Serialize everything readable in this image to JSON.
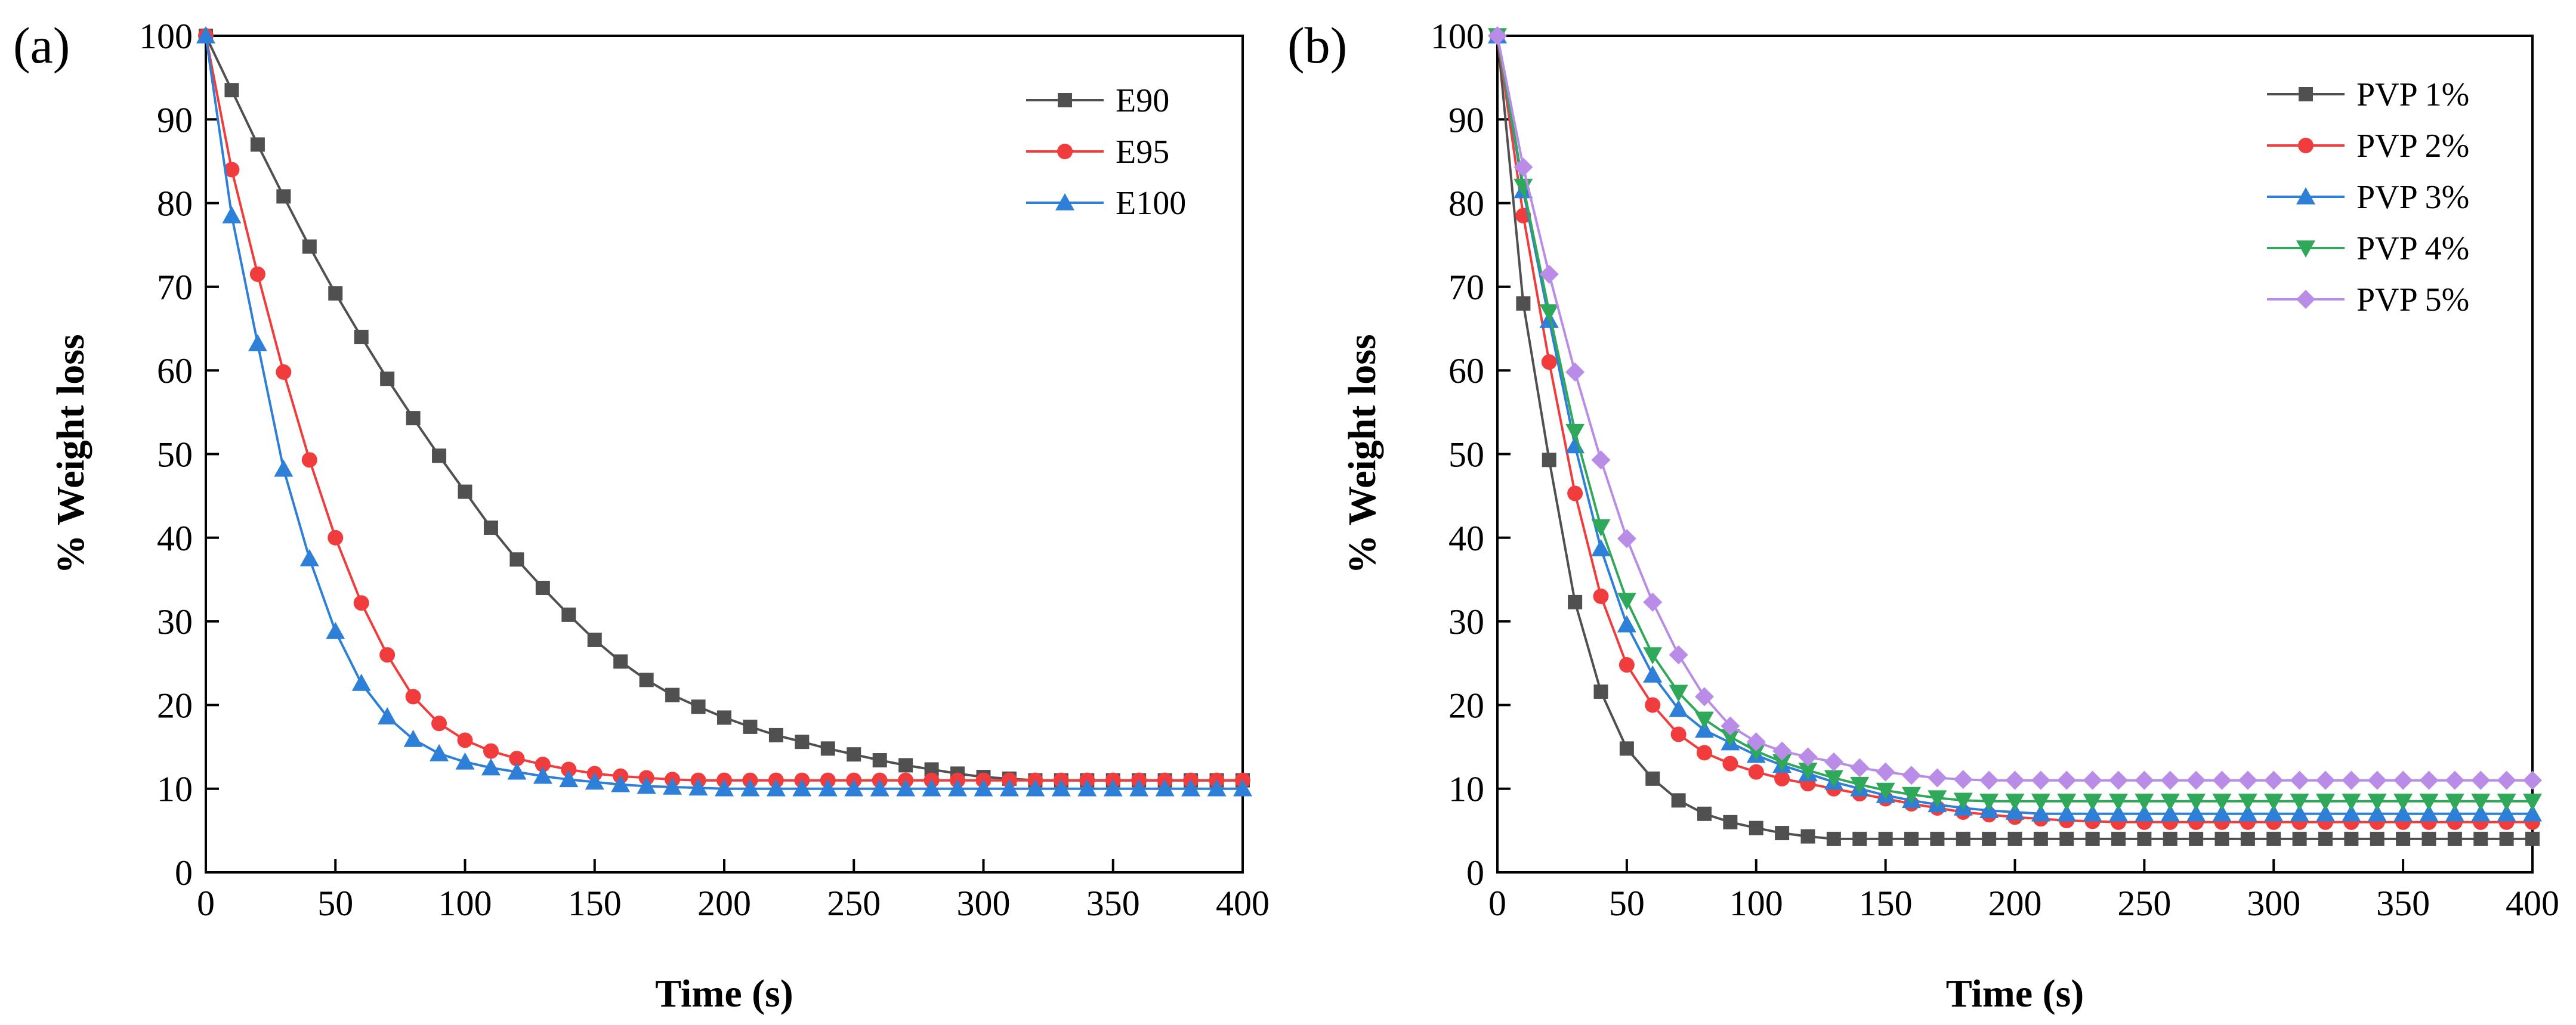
{
  "chart_data": [
    {
      "panel_label": "(a)",
      "type": "line",
      "xlabel": "Time (s)",
      "ylabel": "% Weight loss",
      "xlim": [
        0,
        400
      ],
      "ylim": [
        0,
        100
      ],
      "xticks": [
        "0",
        "50",
        "100",
        "150",
        "200",
        "250",
        "300",
        "350",
        "400"
      ],
      "yticks": [
        "0",
        "10",
        "20",
        "30",
        "40",
        "50",
        "60",
        "70",
        "80",
        "90",
        "100"
      ],
      "legend_position": "top-right",
      "x": [
        0,
        10,
        20,
        30,
        40,
        50,
        60,
        70,
        80,
        90,
        100,
        110,
        120,
        130,
        140,
        150,
        160,
        170,
        180,
        190,
        200,
        210,
        220,
        230,
        240,
        250,
        260,
        270,
        280,
        290,
        300,
        310,
        320,
        330,
        340,
        350,
        360,
        370,
        380,
        390,
        400
      ],
      "series": [
        {
          "name": "E90",
          "color": "#505050",
          "marker": "square",
          "values": [
            100,
            93.5,
            87,
            80.8,
            74.8,
            69.2,
            64,
            59,
            54.3,
            49.8,
            45.5,
            41.2,
            37.4,
            34,
            30.8,
            27.8,
            25.2,
            23,
            21.2,
            19.8,
            18.5,
            17.4,
            16.4,
            15.6,
            14.8,
            14.1,
            13.4,
            12.8,
            12.3,
            11.8,
            11.4,
            11.2,
            11,
            11,
            11,
            11,
            11,
            11,
            11,
            11,
            11
          ]
        },
        {
          "name": "E95",
          "color": "#f03c3c",
          "marker": "circle",
          "values": [
            100,
            84,
            71.5,
            59.8,
            49.3,
            40,
            32.2,
            26,
            21,
            17.8,
            15.8,
            14.5,
            13.6,
            12.9,
            12.3,
            11.8,
            11.5,
            11.3,
            11.1,
            11,
            11,
            11,
            11,
            11,
            11,
            11,
            11,
            11,
            11,
            11,
            11,
            11,
            11,
            11,
            11,
            11,
            11,
            11,
            11,
            11,
            11
          ]
        },
        {
          "name": "E100",
          "color": "#2e7fd8",
          "marker": "triangle-up",
          "values": [
            100,
            78.5,
            63.2,
            48.2,
            37.5,
            28.8,
            22.6,
            18.6,
            15.9,
            14.2,
            13.2,
            12.5,
            12,
            11.5,
            11.1,
            10.8,
            10.5,
            10.3,
            10.2,
            10.1,
            10,
            10,
            10,
            10,
            10,
            10,
            10,
            10,
            10,
            10,
            10,
            10,
            10,
            10,
            10,
            10,
            10,
            10,
            10,
            10,
            10
          ]
        }
      ]
    },
    {
      "panel_label": "(b)",
      "type": "line",
      "xlabel": "Time (s)",
      "ylabel": "% Weight loss",
      "xlim": [
        0,
        400
      ],
      "ylim": [
        0,
        100
      ],
      "xticks": [
        "0",
        "50",
        "100",
        "150",
        "200",
        "250",
        "300",
        "350",
        "400"
      ],
      "yticks": [
        "0",
        "10",
        "20",
        "30",
        "40",
        "50",
        "60",
        "70",
        "80",
        "90",
        "100"
      ],
      "legend_position": "top-right",
      "x": [
        0,
        10,
        20,
        30,
        40,
        50,
        60,
        70,
        80,
        90,
        100,
        110,
        120,
        130,
        140,
        150,
        160,
        170,
        180,
        190,
        200,
        210,
        220,
        230,
        240,
        250,
        260,
        270,
        280,
        290,
        300,
        310,
        320,
        330,
        340,
        350,
        360,
        370,
        380,
        390,
        400
      ],
      "series": [
        {
          "name": "PVP 1%",
          "color": "#505050",
          "marker": "square",
          "values": [
            100,
            68,
            49.3,
            32.3,
            21.6,
            14.8,
            11.2,
            8.6,
            7,
            6,
            5.3,
            4.7,
            4.3,
            4,
            4,
            4,
            4,
            4,
            4,
            4,
            4,
            4,
            4,
            4,
            4,
            4,
            4,
            4,
            4,
            4,
            4,
            4,
            4,
            4,
            4,
            4,
            4,
            4,
            4,
            4,
            4
          ]
        },
        {
          "name": "PVP 2%",
          "color": "#f03c3c",
          "marker": "circle",
          "values": [
            100,
            78.5,
            61,
            45.3,
            33,
            24.8,
            20,
            16.5,
            14.3,
            13,
            12,
            11.2,
            10.6,
            10,
            9.4,
            8.8,
            8.2,
            7.7,
            7.2,
            6.9,
            6.6,
            6.4,
            6.2,
            6.1,
            6,
            6,
            6,
            6,
            6,
            6,
            6,
            6,
            6,
            6,
            6,
            6,
            6,
            6,
            6,
            6,
            6
          ]
        },
        {
          "name": "PVP 3%",
          "color": "#2e7fd8",
          "marker": "triangle-up",
          "values": [
            100,
            81.5,
            66,
            51,
            38.7,
            29.6,
            23.6,
            19.5,
            17,
            15.5,
            14,
            12.8,
            11.8,
            10.8,
            10,
            9.2,
            8.6,
            8.1,
            7.7,
            7.4,
            7.2,
            7,
            7,
            7,
            7,
            7,
            7,
            7,
            7,
            7,
            7,
            7,
            7,
            7,
            7,
            7,
            7,
            7,
            7,
            7,
            7
          ]
        },
        {
          "name": "PVP 4%",
          "color": "#2fa85a",
          "marker": "triangle-down",
          "values": [
            100,
            82,
            67,
            52.7,
            41.3,
            32.5,
            26,
            21.5,
            18.3,
            16.2,
            14.5,
            13.2,
            12.2,
            11.3,
            10.5,
            9.8,
            9.3,
            8.9,
            8.6,
            8.5,
            8.5,
            8.5,
            8.5,
            8.5,
            8.5,
            8.5,
            8.5,
            8.5,
            8.5,
            8.5,
            8.5,
            8.5,
            8.5,
            8.5,
            8.5,
            8.5,
            8.5,
            8.5,
            8.5,
            8.5,
            8.5
          ]
        },
        {
          "name": "PVP 5%",
          "color": "#b98ce8",
          "marker": "diamond",
          "values": [
            100,
            84.3,
            71.5,
            59.8,
            49.3,
            39.9,
            32.3,
            26,
            21,
            17.5,
            15.6,
            14.5,
            13.8,
            13.2,
            12.5,
            12,
            11.6,
            11.3,
            11.1,
            11,
            11,
            11,
            11,
            11,
            11,
            11,
            11,
            11,
            11,
            11,
            11,
            11,
            11,
            11,
            11,
            11,
            11,
            11,
            11,
            11,
            11
          ]
        }
      ]
    }
  ]
}
